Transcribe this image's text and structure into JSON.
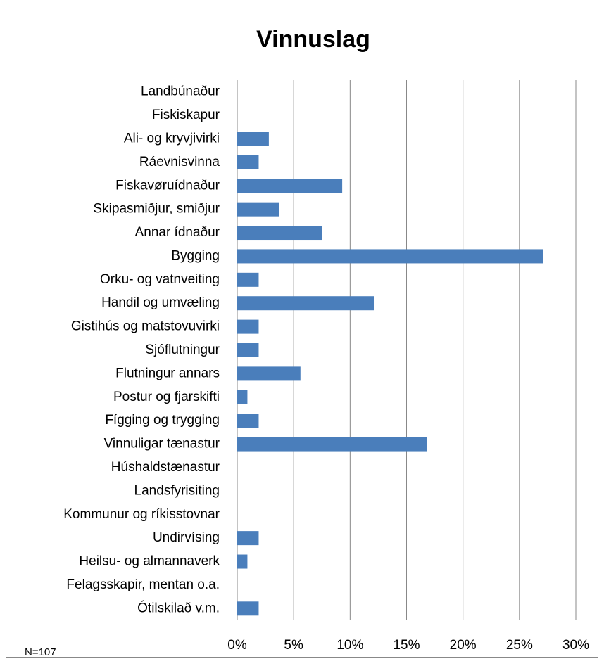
{
  "chart_data": {
    "type": "bar",
    "orientation": "horizontal",
    "title": "Vinnuslag",
    "annotation": "N=107",
    "categories": [
      "Landbúnaður",
      "Fiskiskapur",
      "Ali- og kryvjivirki",
      "Ráevnisvinna",
      "Fiskavøruídnaður",
      "Skipasmiðjur, smiðjur",
      "Annar ídnaður",
      "Bygging",
      "Orku- og vatnveiting",
      "Handil og umvæling",
      "Gistihús og matstovuvirki",
      "Sjóflutningur",
      "Flutningur annars",
      "Postur og fjarskifti",
      "Fígging og trygging",
      "Vinnuligar tænastur",
      "Húshaldstænastur",
      "Landsfyrisiting",
      "Kommunur og ríkisstovnar",
      "Undirvísing",
      "Heilsu- og almannaverk",
      "Felagsskapir, mentan o.a.",
      "Ótilskilað v.m."
    ],
    "values": [
      0,
      0,
      2.8,
      1.9,
      9.3,
      3.7,
      7.5,
      27.1,
      1.9,
      12.1,
      1.9,
      1.9,
      5.6,
      0.9,
      1.9,
      16.8,
      0,
      0,
      0,
      1.9,
      0.9,
      0,
      1.9
    ],
    "color": "#4a7ebb",
    "xlim": [
      0,
      30
    ],
    "xticks": [
      {
        "value": 0,
        "label": "0%"
      },
      {
        "value": 5,
        "label": "5%"
      },
      {
        "value": 10,
        "label": "10%"
      },
      {
        "value": 15,
        "label": "15%"
      },
      {
        "value": 20,
        "label": "20%"
      },
      {
        "value": 25,
        "label": "25%"
      },
      {
        "value": 30,
        "label": "30%"
      }
    ],
    "grid": true
  }
}
